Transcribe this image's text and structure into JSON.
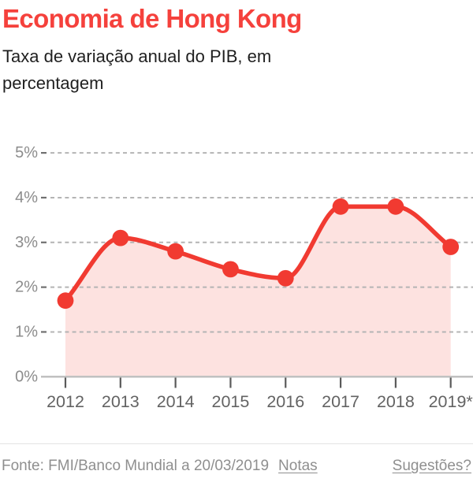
{
  "header": {
    "title": "Economia de Hong Kong",
    "subtitle": "Taxa de variação anual do PIB, em percentagem"
  },
  "chart_data": {
    "type": "area",
    "title": "Economia de Hong Kong",
    "subtitle": "Taxa de variação anual do PIB, em percentagem",
    "categories": [
      "2012",
      "2013",
      "2014",
      "2015",
      "2016",
      "2017",
      "2018",
      "2019*"
    ],
    "values": [
      1.7,
      3.1,
      2.8,
      2.4,
      2.2,
      3.8,
      3.8,
      2.9
    ],
    "unit": "%",
    "ylim": [
      0,
      5
    ],
    "y_ticks": [
      0,
      1,
      2,
      3,
      4,
      5
    ],
    "y_tick_labels": [
      "0%",
      "1%",
      "2%",
      "3%",
      "4%",
      "5%"
    ],
    "xlabel": "",
    "ylabel": "",
    "grid": "horizontal-dashed",
    "legend": "none",
    "line_color": "#f13a31",
    "marker": "circle",
    "fill_color": "rgba(241,58,49,0.15)"
  },
  "footer": {
    "source": "Fonte: FMI/Banco Mundial a 20/03/2019",
    "notes_label": "Notas",
    "suggestions_label": "Sugestões?"
  },
  "colors": {
    "title": "#f5413c",
    "subtitle_text": "#1f1f1f",
    "y_axis_text": "#8c8c8c",
    "x_axis_text": "#636363",
    "grid_dash": "#b4b4b4",
    "axis_line": "#bdbdbd",
    "tick": "#5a5a5a",
    "footer_text": "#8f8f8f"
  }
}
